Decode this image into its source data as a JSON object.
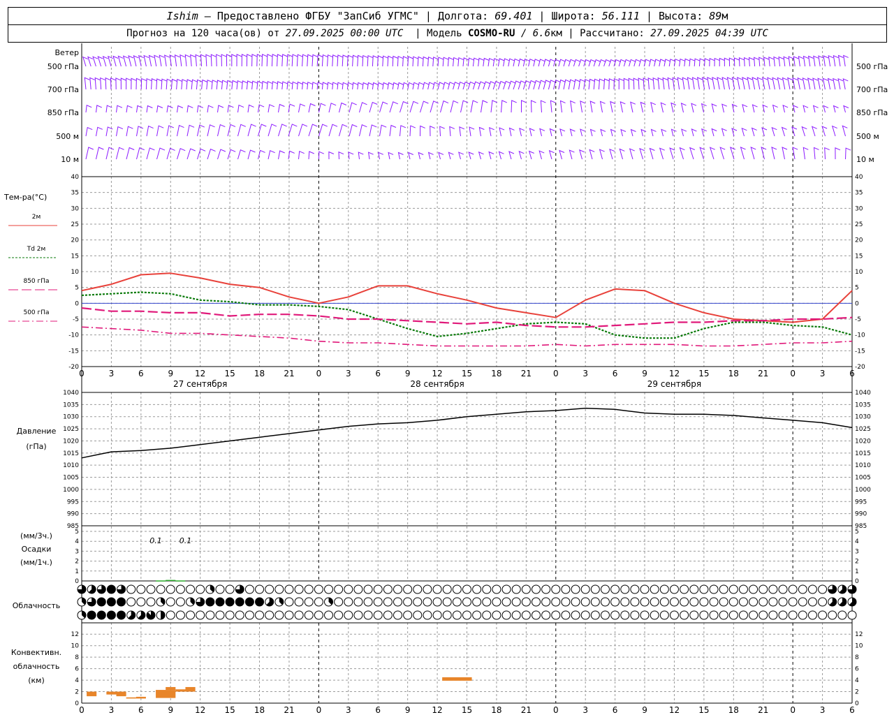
{
  "header": {
    "station": "Ishim",
    "dash": " — ",
    "provider": "Предоставлено ФГБУ \"ЗапСиб УГМС\"",
    "sep": " | ",
    "lon_label": "Долгота: ",
    "lon_value": "69.401",
    "lat_label": "Широта: ",
    "lat_value": "56.111",
    "alt_label": "Высота: ",
    "alt_value": "89",
    "alt_unit": "м"
  },
  "subheader": {
    "forecast_label": "Прогноз на 120 часа(ов) от ",
    "forecast_from": "27.09.2025 00:00 UTC",
    "model_label": "  | Модель ",
    "model_name": "COSMO-RU",
    "model_res": " / 6.6",
    "model_res_unit": "км",
    "calc_label": " | Рассчитано: ",
    "calc_time": "27.09.2025 04:39 UTC"
  },
  "colors": {
    "wind": "#8c1aff",
    "temp2m": "#e8413a",
    "dew": "#0a7a0a",
    "t850": "#e0197a",
    "precip": "#2aaa2a",
    "convective": "#e8852a",
    "msl_zero": "#3344cc"
  },
  "chart_data": [
    {
      "type": "wind-barbs",
      "title": "Ветер",
      "levels": [
        "500 гПа",
        "700 гПа",
        "850 гПа",
        "500 м",
        "10 м"
      ]
    },
    {
      "type": "line",
      "ylabel": "Тем-ра(°C)",
      "ylim": [
        -20,
        40
      ],
      "yticks": [
        -20,
        -15,
        -10,
        -5,
        0,
        5,
        10,
        15,
        20,
        25,
        30,
        35,
        40
      ],
      "x_hours": [
        0,
        3,
        6,
        9,
        12,
        15,
        18,
        21,
        24,
        27,
        30,
        33,
        36,
        39,
        42,
        45,
        48,
        51,
        54,
        57,
        60,
        63,
        66,
        69,
        72,
        75,
        78
      ],
      "series": [
        {
          "name": "2м",
          "style": "solid",
          "values": [
            4,
            6,
            9,
            9.5,
            8,
            6,
            5,
            2,
            0,
            2,
            5.5,
            5.5,
            3,
            1,
            -1.5,
            -3,
            -4.5,
            1,
            4.5,
            4,
            0,
            -3,
            -5,
            -5.5,
            -6,
            -5,
            4
          ]
        },
        {
          "name": "Td 2м",
          "style": "dotted",
          "values": [
            2.5,
            3,
            3.5,
            3,
            1,
            0.5,
            -0.5,
            -0.5,
            -1,
            -2,
            -5,
            -8,
            -10.5,
            -9.5,
            -8,
            -6.5,
            -6,
            -6.5,
            -10,
            -11,
            -11,
            -8,
            -6,
            -6,
            -7,
            -7.5,
            -10
          ]
        },
        {
          "name": "850 гПа",
          "style": "dash",
          "values": [
            -1.5,
            -2.5,
            -2.5,
            -3,
            -3,
            -4,
            -3.5,
            -3.5,
            -4,
            -5,
            -5,
            -5.5,
            -6,
            -6.5,
            -6,
            -7,
            -7.5,
            -7.5,
            -7,
            -6.5,
            -6,
            -6,
            -5.5,
            -5.5,
            -5,
            -5,
            -4.5
          ]
        },
        {
          "name": "500 гПа",
          "style": "dash-dot",
          "values": [
            -7.5,
            -8,
            -8.5,
            -9.5,
            -9.5,
            -10,
            -10.5,
            -11,
            -12,
            -12.5,
            -12.5,
            -13,
            -13.5,
            -13.5,
            -13.5,
            -13.5,
            -13,
            -13.5,
            -13,
            -13,
            -13,
            -13.5,
            -13.5,
            -13,
            -12.5,
            -12.5,
            -12
          ]
        }
      ]
    },
    {
      "type": "line",
      "ylabel": "Давление",
      "ylabel2": "(гПа)",
      "ylim": [
        985,
        1040
      ],
      "yticks": [
        985,
        990,
        995,
        1000,
        1005,
        1010,
        1015,
        1020,
        1025,
        1030,
        1035,
        1040
      ],
      "x_hours": [
        0,
        3,
        6,
        9,
        12,
        15,
        18,
        21,
        24,
        27,
        30,
        33,
        36,
        39,
        42,
        45,
        48,
        51,
        54,
        57,
        60,
        63,
        66,
        69,
        72,
        75,
        78
      ],
      "series": [
        {
          "name": "",
          "values": [
            1013,
            1015.5,
            1016,
            1017,
            1018.5,
            1020,
            1021.5,
            1023,
            1024.5,
            1026,
            1027,
            1027.5,
            1028.5,
            1030,
            1031,
            1032,
            1032.5,
            1033.5,
            1033,
            1031.5,
            1031,
            1031,
            1030.5,
            1029.5,
            1028.5,
            1027.5,
            1025.5
          ]
        }
      ]
    },
    {
      "type": "bar",
      "ylabel_top": "(мм/3ч.)",
      "ylabel": "Осадки",
      "ylabel2": "(мм/1ч.)",
      "ylim": [
        0,
        5
      ],
      "yticks": [
        0,
        1,
        2,
        3,
        4,
        5
      ],
      "annotations": [
        {
          "x_hour": 7.5,
          "text": "0.1"
        },
        {
          "x_hour": 10.5,
          "text": "0.1"
        }
      ],
      "bars": [
        {
          "x_hour": 8,
          "value": 0.05
        },
        {
          "x_hour": 9,
          "value": 0.1
        },
        {
          "x_hour": 10,
          "value": 0.05
        }
      ]
    },
    {
      "type": "cloud-cover",
      "ylabel": "Облачность",
      "rows": [
        "6555466888866000000000000000000040008300000066660000000000000000000000000000000000000000000000000000000000000000000000000000000000000000000000000000000000000000000000000000000000000000000000000000000000000000000000006555556",
        "3356788888888003300000300000000353688888888888888888655530004400000000300000000000000000000000000000000000000000000000000000000000000000000000000000000000000000000000000000000000000000000000000000000000000000000005555305",
        "3678888888887555557777740200000000000000000000000000000000000000000000000000000000000000000000000000000000000000000000000000000000000000000000000000000000000000000000000000000000000000000000000000000000000000000000000000000"
      ]
    },
    {
      "type": "bar",
      "ylabel": "Конвективн.",
      "ylabel2": "облачность",
      "ylabel3": "(км)",
      "ylim": [
        0,
        13
      ],
      "yticks": [
        0,
        2,
        4,
        6,
        8,
        10,
        12
      ],
      "ranges": [
        {
          "x_start": 0.5,
          "x_end": 1.5,
          "bottom": 1.2,
          "top": 2.0
        },
        {
          "x_start": 2.5,
          "x_end": 4.5,
          "bottom": 1.5,
          "top": 2.0
        },
        {
          "x_start": 3.5,
          "x_end": 4.5,
          "bottom": 1.2,
          "top": 1.6
        },
        {
          "x_start": 4.5,
          "x_end": 5.5,
          "bottom": 0.8,
          "top": 1.0
        },
        {
          "x_start": 5.5,
          "x_end": 6.5,
          "bottom": 0.8,
          "top": 1.1
        },
        {
          "x_start": 7.5,
          "x_end": 9.5,
          "bottom": 0.9,
          "top": 2.3
        },
        {
          "x_start": 8.5,
          "x_end": 9.5,
          "bottom": 2.3,
          "top": 2.8
        },
        {
          "x_start": 9.5,
          "x_end": 11.5,
          "bottom": 2.0,
          "top": 2.4
        },
        {
          "x_start": 10.5,
          "x_end": 11.5,
          "bottom": 2.3,
          "top": 2.8
        },
        {
          "x_start": 36.5,
          "x_end": 39.5,
          "bottom": 3.9,
          "top": 4.5
        }
      ]
    }
  ],
  "xaxis": {
    "hours": [
      0,
      3,
      6,
      9,
      12,
      15,
      18,
      21,
      0,
      3,
      6,
      9,
      12,
      15,
      18,
      21,
      0,
      3,
      6,
      9,
      12,
      15,
      18,
      21,
      0,
      3,
      6
    ],
    "day_labels": [
      "27 сентября",
      "28 сентября",
      "29 сентября"
    ]
  }
}
